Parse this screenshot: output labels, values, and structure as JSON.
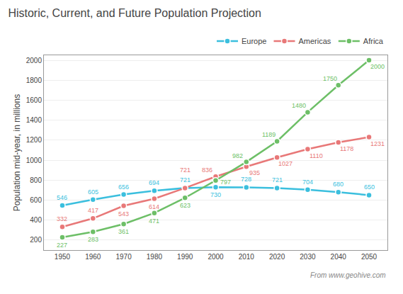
{
  "chart_data": {
    "type": "line",
    "title": "Historic, Current, and Future Population Projection",
    "ylabel": "Population mid-year, in millions",
    "x": [
      1950,
      1960,
      1970,
      1980,
      1990,
      2000,
      2010,
      2020,
      2030,
      2040,
      2050
    ],
    "series": [
      {
        "name": "Europe",
        "color": "#3bbfde",
        "values": [
          546,
          605,
          656,
          694,
          721,
          730,
          728,
          721,
          704,
          680,
          650
        ]
      },
      {
        "name": "Americas",
        "color": "#e87878",
        "values": [
          332,
          417,
          543,
          614,
          721,
          836,
          935,
          1027,
          1110,
          1178,
          1231
        ]
      },
      {
        "name": "Africa",
        "color": "#6dbf67",
        "values": [
          227,
          283,
          361,
          471,
          623,
          797,
          982,
          1189,
          1480,
          1750,
          2000
        ]
      }
    ],
    "xlim": [
      1944,
      2056
    ],
    "xticks": [
      1950,
      1960,
      1970,
      1980,
      1990,
      2000,
      2010,
      2020,
      2030,
      2040,
      2050
    ],
    "ylim": [
      100,
      2050
    ],
    "yticks": [
      200,
      400,
      600,
      800,
      1000,
      1200,
      1400,
      1600,
      1800,
      2000
    ],
    "grid": "y",
    "legend": "upper right",
    "data_labels": true,
    "marker": "circle",
    "annotations": [
      "From www.geohive.com"
    ]
  }
}
